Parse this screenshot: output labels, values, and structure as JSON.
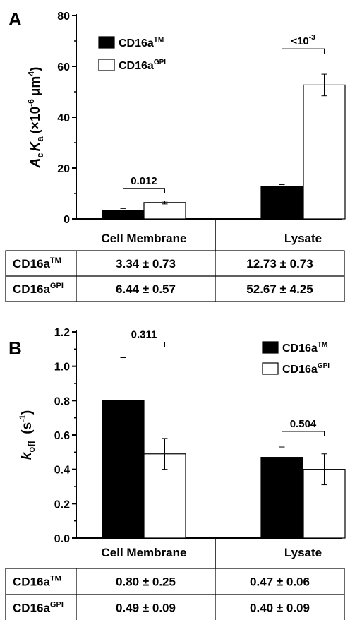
{
  "chart_data": [
    {
      "panel_label": "A",
      "type": "bar",
      "categories": [
        "Cell Membrane",
        "Lysate"
      ],
      "ylim": [
        0,
        80
      ],
      "yticks": [
        "0",
        "20",
        "40",
        "60",
        "80"
      ],
      "ylabel": {
        "main": "A",
        "main_sub": "c",
        "main2": "K",
        "main2_sub": "a",
        "unit_pre": "(×10",
        "unit_exp": "-6",
        "unit_mid": "μm",
        "unit_exp2": "4",
        "unit_post": ")"
      },
      "series": [
        {
          "name": "CD16a",
          "name_sup": "TM",
          "fill": "#000000",
          "values": [
            3.34,
            12.73
          ],
          "errors": [
            0.73,
            0.73
          ]
        },
        {
          "name": "CD16a",
          "name_sup": "GPI",
          "fill": "#ffffff",
          "values": [
            6.44,
            52.67
          ],
          "errors": [
            0.57,
            4.25
          ]
        }
      ],
      "annotations": [
        {
          "category": 0,
          "text": "0.012"
        },
        {
          "category": 1,
          "text": "<10",
          "sup": "-3"
        }
      ],
      "table": {
        "rows": [
          {
            "label": "CD16a",
            "label_sup": "TM",
            "cells": [
              "3.34 ± 0.73",
              "12.73 ± 0.73"
            ]
          },
          {
            "label": "CD16a",
            "label_sup": "GPI",
            "cells": [
              "6.44 ± 0.57",
              "52.67 ± 4.25"
            ]
          }
        ]
      }
    },
    {
      "panel_label": "B",
      "type": "bar",
      "categories": [
        "Cell Membrane",
        "Lysate"
      ],
      "ylim": [
        0,
        1.2
      ],
      "yticks": [
        "0.0",
        "0.2",
        "0.4",
        "0.6",
        "0.8",
        "1.0",
        "1.2"
      ],
      "ylabel": {
        "main": "k",
        "main_sub": "off",
        "unit_pre": " (s",
        "unit_exp": "-1",
        "unit_post": ")"
      },
      "series": [
        {
          "name": "CD16a",
          "name_sup": "TM",
          "fill": "#000000",
          "values": [
            0.8,
            0.47
          ],
          "errors": [
            0.25,
            0.06
          ]
        },
        {
          "name": "CD16a",
          "name_sup": "GPI",
          "fill": "#ffffff",
          "values": [
            0.49,
            0.4
          ],
          "errors": [
            0.09,
            0.09
          ]
        }
      ],
      "annotations": [
        {
          "category": 0,
          "text": "0.311"
        },
        {
          "category": 1,
          "text": "0.504"
        }
      ],
      "table": {
        "rows": [
          {
            "label": "CD16a",
            "label_sup": "TM",
            "cells": [
              "0.80 ± 0.25",
              "0.47 ± 0.06"
            ]
          },
          {
            "label": "CD16a",
            "label_sup": "GPI",
            "cells": [
              "0.49 ± 0.09",
              "0.40 ± 0.09"
            ]
          }
        ]
      }
    }
  ]
}
